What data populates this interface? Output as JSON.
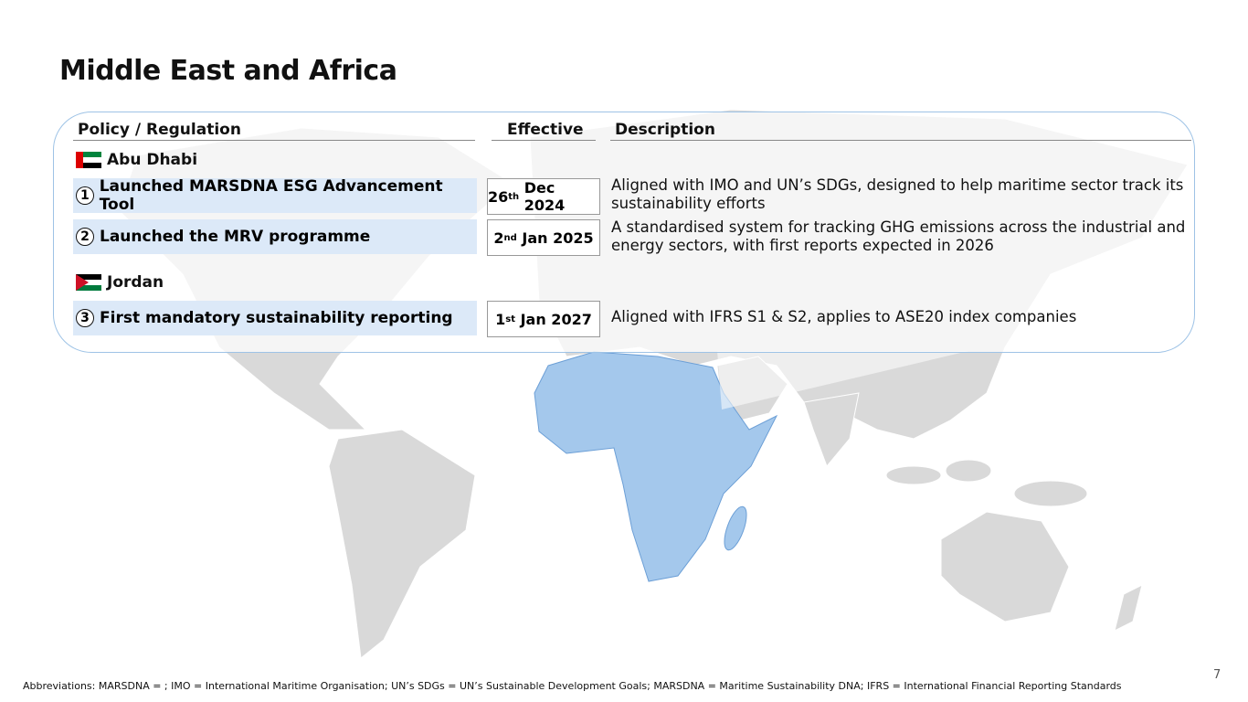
{
  "title": "Middle East and Africa",
  "table": {
    "headers": [
      "Policy / Regulation",
      "Effective",
      "Description"
    ],
    "groups": [
      {
        "region": "Abu Dhabi",
        "rows": [
          {
            "number": "1",
            "policy": "Launched MARSDNA ESG Advancement Tool",
            "effective": {
              "day": "26",
              "suffix": "th",
              "rest": "Dec 2024"
            },
            "description": "Aligned with IMO and UN’s SDGs, designed to help maritime sector track its sustainability efforts"
          },
          {
            "number": "2",
            "policy": "Launched the MRV programme",
            "effective": {
              "day": "2",
              "suffix": "nd",
              "rest": "Jan 2025"
            },
            "description": "A standardised system for tracking GHG emissions across the industrial and energy sectors, with first reports expected in 2026"
          }
        ]
      },
      {
        "region": "Jordan",
        "rows": [
          {
            "number": "3",
            "policy": "First mandatory sustainability reporting",
            "effective": {
              "day": "1",
              "suffix": "st",
              "rest": "Jan 2027"
            },
            "description": "Aligned with IFRS S1 & S2, applies to ASE20 index companies"
          }
        ]
      }
    ]
  },
  "footnote": "Abbreviations: MARSDNA = ; IMO = International Maritime Organisation; UN’s SDGs = UN’s Sustainable Development Goals; MARSDNA = Maritime Sustainability DNA; IFRS = International Financial Reporting Standards",
  "page_number": "7"
}
